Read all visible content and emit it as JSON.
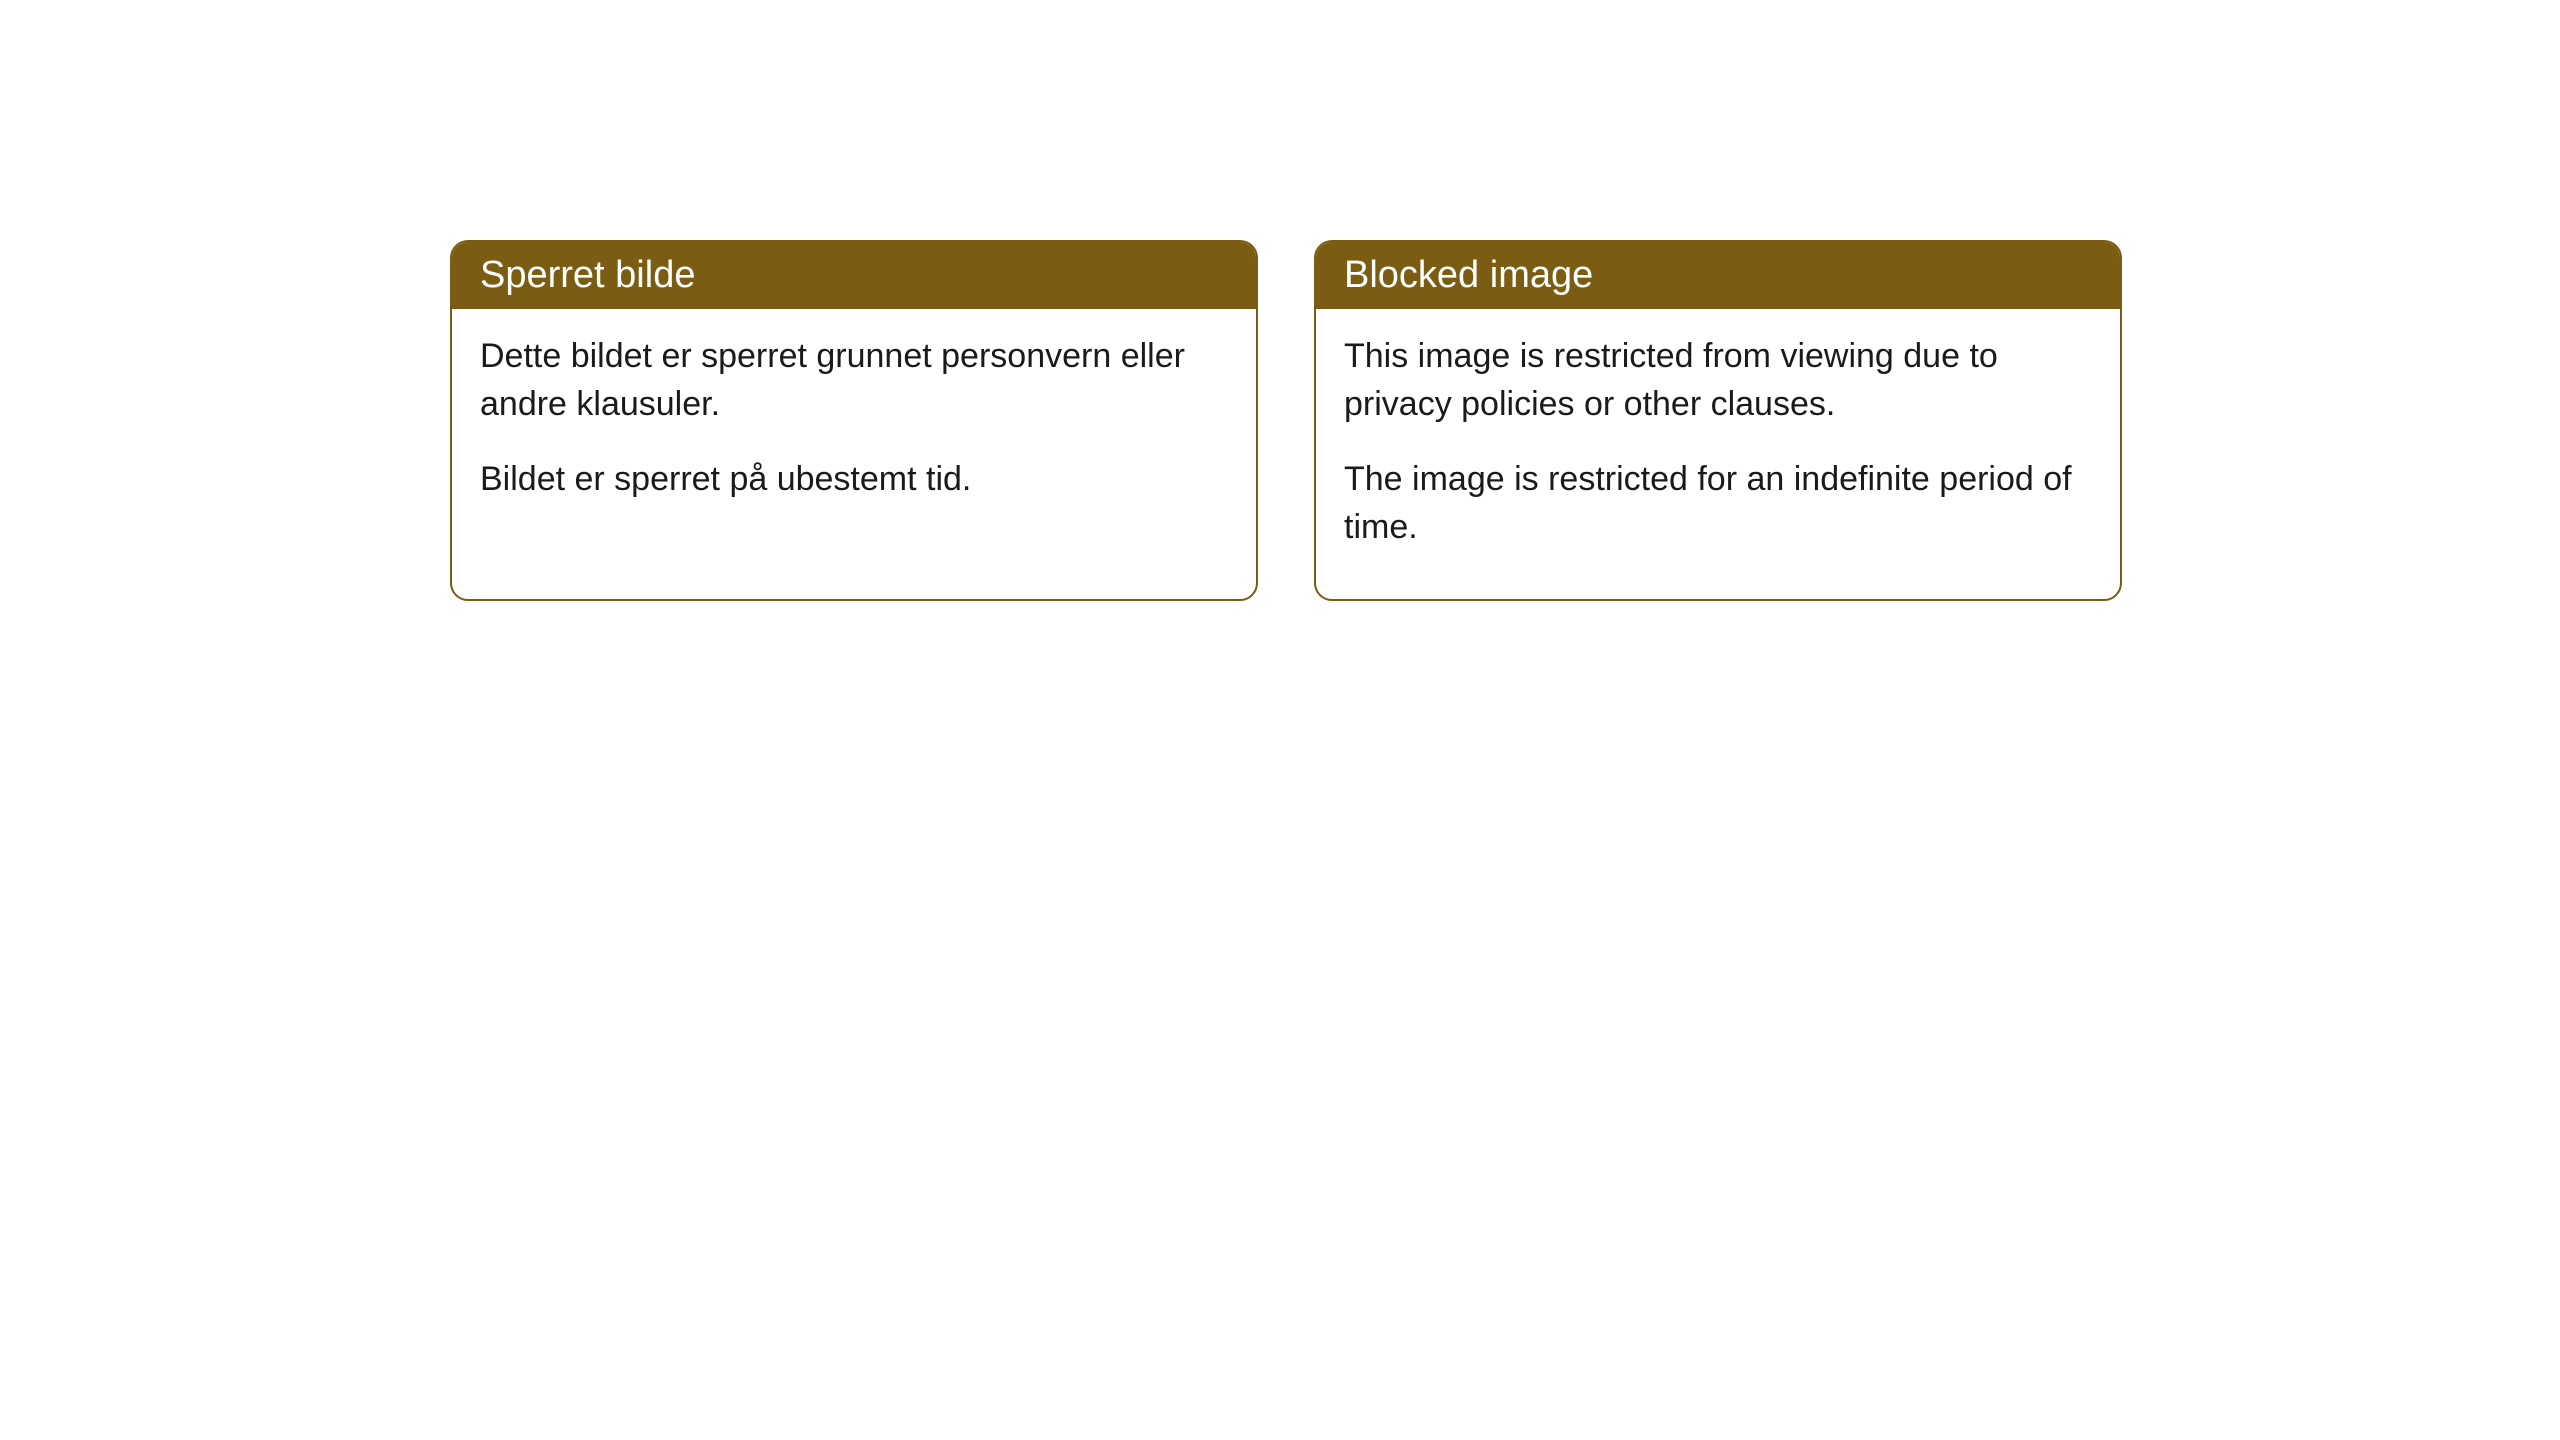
{
  "cards": [
    {
      "title": "Sperret bilde",
      "paragraph1": "Dette bildet er sperret grunnet personvern eller andre klausuler.",
      "paragraph2": "Bildet er sperret på ubestemt tid."
    },
    {
      "title": "Blocked image",
      "paragraph1": "This image is restricted from viewing due to privacy policies or other clauses.",
      "paragraph2": "The image is restricted for an indefinite period of time."
    }
  ],
  "styling": {
    "header_background_color": "#7a5c12",
    "header_text_color": "#ffffff",
    "border_color": "#7a5c12",
    "body_background_color": "#ffffff",
    "body_text_color": "#1a1a1a",
    "border_radius": 18,
    "header_fontsize": 38,
    "body_fontsize": 34
  }
}
